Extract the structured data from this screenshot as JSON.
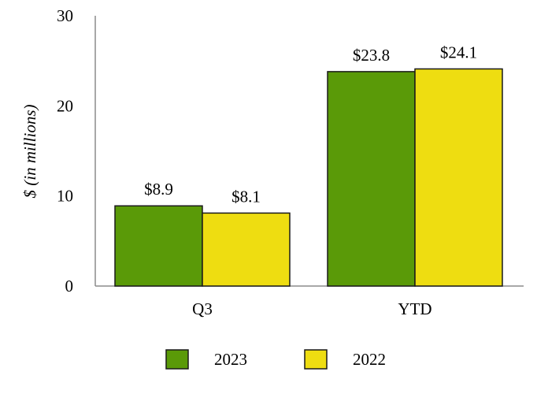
{
  "chart_data": {
    "type": "bar",
    "title": "",
    "xlabel": "",
    "ylabel": "$ (in millions)",
    "categories": [
      "Q3",
      "YTD"
    ],
    "series": [
      {
        "name": "2023",
        "values": [
          8.9,
          23.8
        ],
        "labels": [
          "$8.9",
          "$23.8"
        ],
        "color": "#5a9a08"
      },
      {
        "name": "2022",
        "values": [
          8.1,
          24.1
        ],
        "labels": [
          "$8.1",
          "$24.1"
        ],
        "color": "#eedd11"
      }
    ],
    "ylim": [
      0,
      30
    ],
    "yticks": [
      0,
      10,
      20,
      30
    ],
    "grid": false,
    "legend": "bottom"
  }
}
